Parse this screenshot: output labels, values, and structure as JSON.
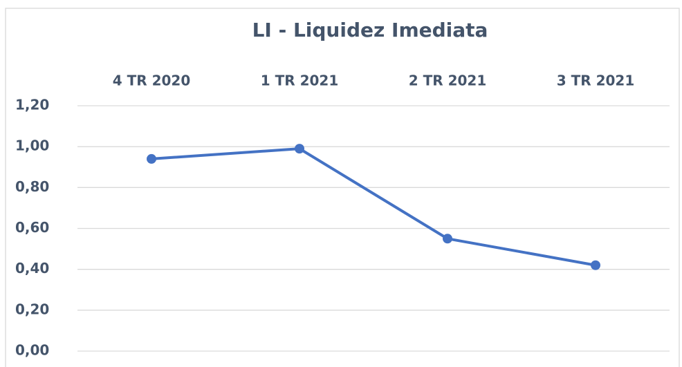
{
  "chart_data": {
    "type": "line",
    "title": "LI - Liquidez Imediata",
    "categories": [
      "4 TR 2020",
      "1 TR 2021",
      "2 TR 2021",
      "3 TR 2021"
    ],
    "series": [
      {
        "name": "LI",
        "color": "#4472c4",
        "values": [
          0.94,
          0.99,
          0.55,
          0.42
        ]
      }
    ],
    "ylim": [
      0,
      1.2
    ],
    "yticks": [
      {
        "value": 0,
        "label": "0,00"
      },
      {
        "value": 0.2,
        "label": "0,20"
      },
      {
        "value": 0.4,
        "label": "0,40"
      },
      {
        "value": 0.6,
        "label": "0,60"
      },
      {
        "value": 0.8,
        "label": "0,80"
      },
      {
        "value": 1.0,
        "label": "1,00"
      },
      {
        "value": 1.2,
        "label": "1,20"
      }
    ],
    "grid": true
  }
}
